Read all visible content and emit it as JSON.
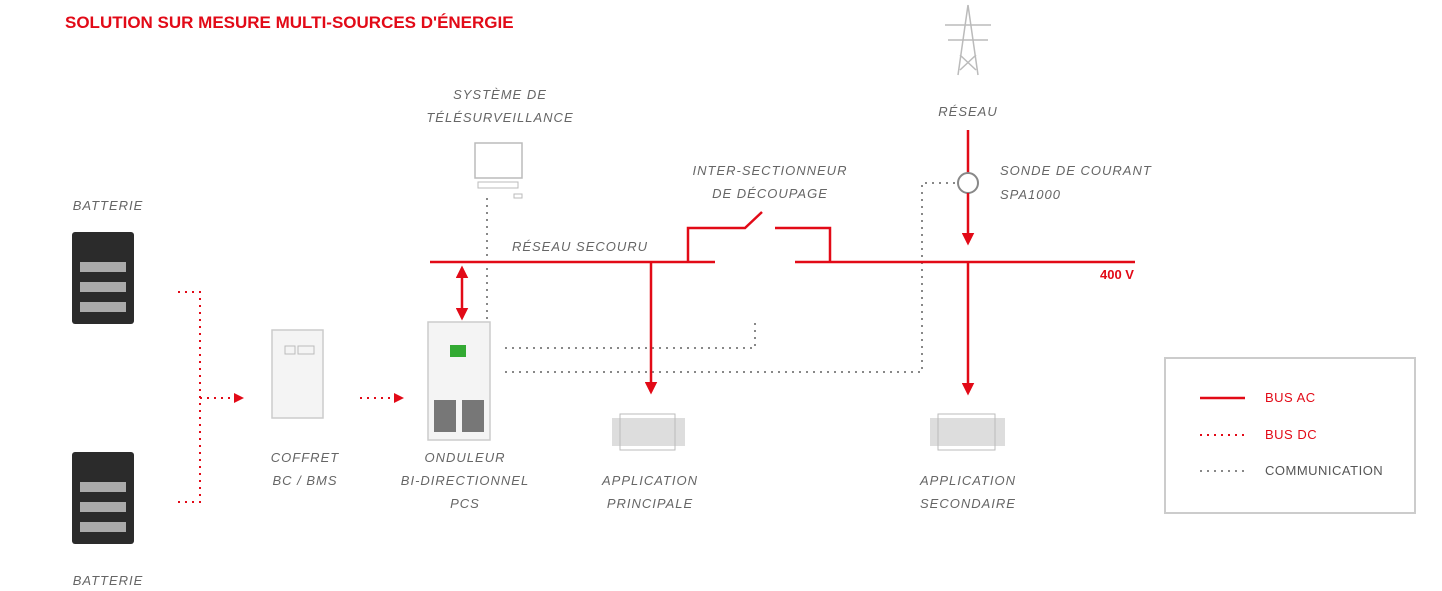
{
  "title": "SOLUTION SUR MESURE MULTI-SOURCES D'ÉNERGIE",
  "nodes": [
    {
      "label": [
        "BATTERIE"
      ]
    },
    {
      "label": [
        "BATTERIE"
      ]
    },
    {
      "label": [
        "COFFRET",
        "BC / BMS"
      ]
    },
    {
      "label": [
        "ONDULEUR",
        "BI-DIRECTIONNEL",
        "PCS"
      ]
    },
    {
      "label": [
        "SYSTÈME DE",
        "TÉLÉSURVEILLANCE"
      ]
    },
    {
      "label": [
        "INTER-SECTIONNEUR",
        "DE DÉCOUPAGE"
      ]
    },
    {
      "label": [
        "RÉSEAU"
      ]
    },
    {
      "label": [
        "SONDE DE COURANT",
        "SPA1000"
      ]
    },
    {
      "label": [
        "APPLICATION",
        "PRINCIPALE"
      ]
    },
    {
      "label": [
        "APPLICATION",
        "SECONDAIRE"
      ]
    },
    {
      "label": [
        "RÉSEAU SECOURU"
      ]
    },
    {
      "label": [
        "400 V"
      ]
    }
  ],
  "legend": [
    "BUS AC",
    "BUS DC",
    "COMMUNICATION"
  ]
}
